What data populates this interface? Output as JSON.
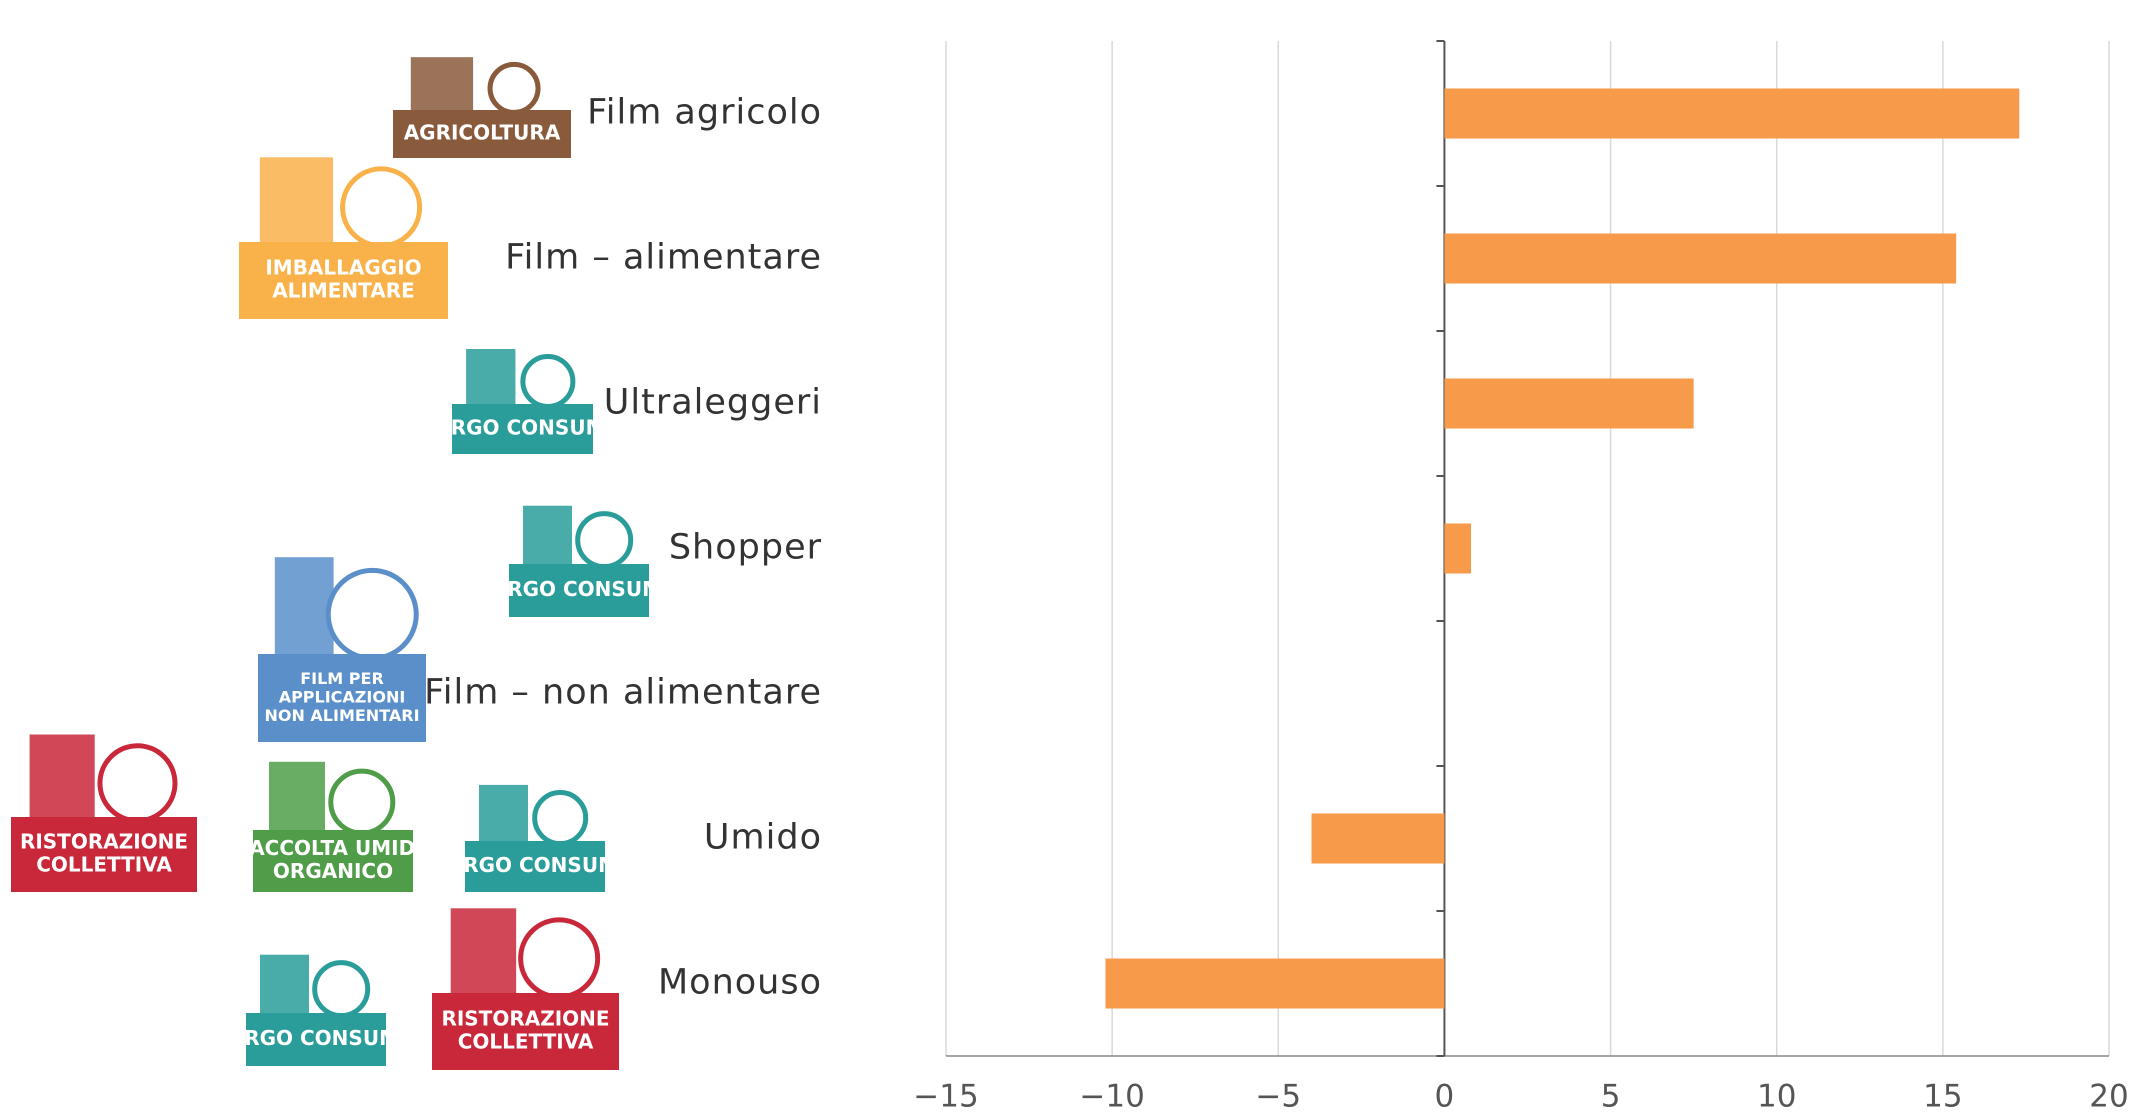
{
  "chart_data": {
    "type": "hbar",
    "categories": [
      "Film agricolo",
      "Film –  alimentare",
      "Ultraleggeri",
      "Shopper",
      "Film – non alimentare",
      "Umido",
      "Monouso"
    ],
    "values": [
      17.3,
      15.4,
      7.5,
      0.8,
      0,
      -4.0,
      -10.2
    ],
    "color": "#f79a4a",
    "xlim": [
      -15,
      20
    ],
    "xticks": [
      {
        "value": -15,
        "label": "−15"
      },
      {
        "value": -10,
        "label": "−10"
      },
      {
        "value": -5,
        "label": "−5"
      },
      0,
      5,
      10,
      15,
      20
    ],
    "grid": true
  },
  "icon_badges": [
    [
      [
        "AGRICOLTURA"
      ]
    ],
    [
      [
        "IMBALLAGGIO",
        "ALIMENTARE"
      ]
    ],
    [
      [
        "LARGO CONSUMO"
      ]
    ],
    [
      [
        "LARGO CONSUMO"
      ]
    ],
    [
      [
        "FILM PER",
        "APPLICAZIONI",
        "NON ALIMENTARI"
      ]
    ],
    [
      [
        "RISTORAZIONE",
        "COLLETTIVA"
      ],
      [
        "RACCOLTA UMIDO",
        "ORGANICO"
      ],
      [
        "LARGO CONSUMO"
      ]
    ],
    [
      [
        "LARGO CONSUMO"
      ],
      [
        "RISTORAZIONE",
        "COLLETTIVA"
      ]
    ]
  ]
}
